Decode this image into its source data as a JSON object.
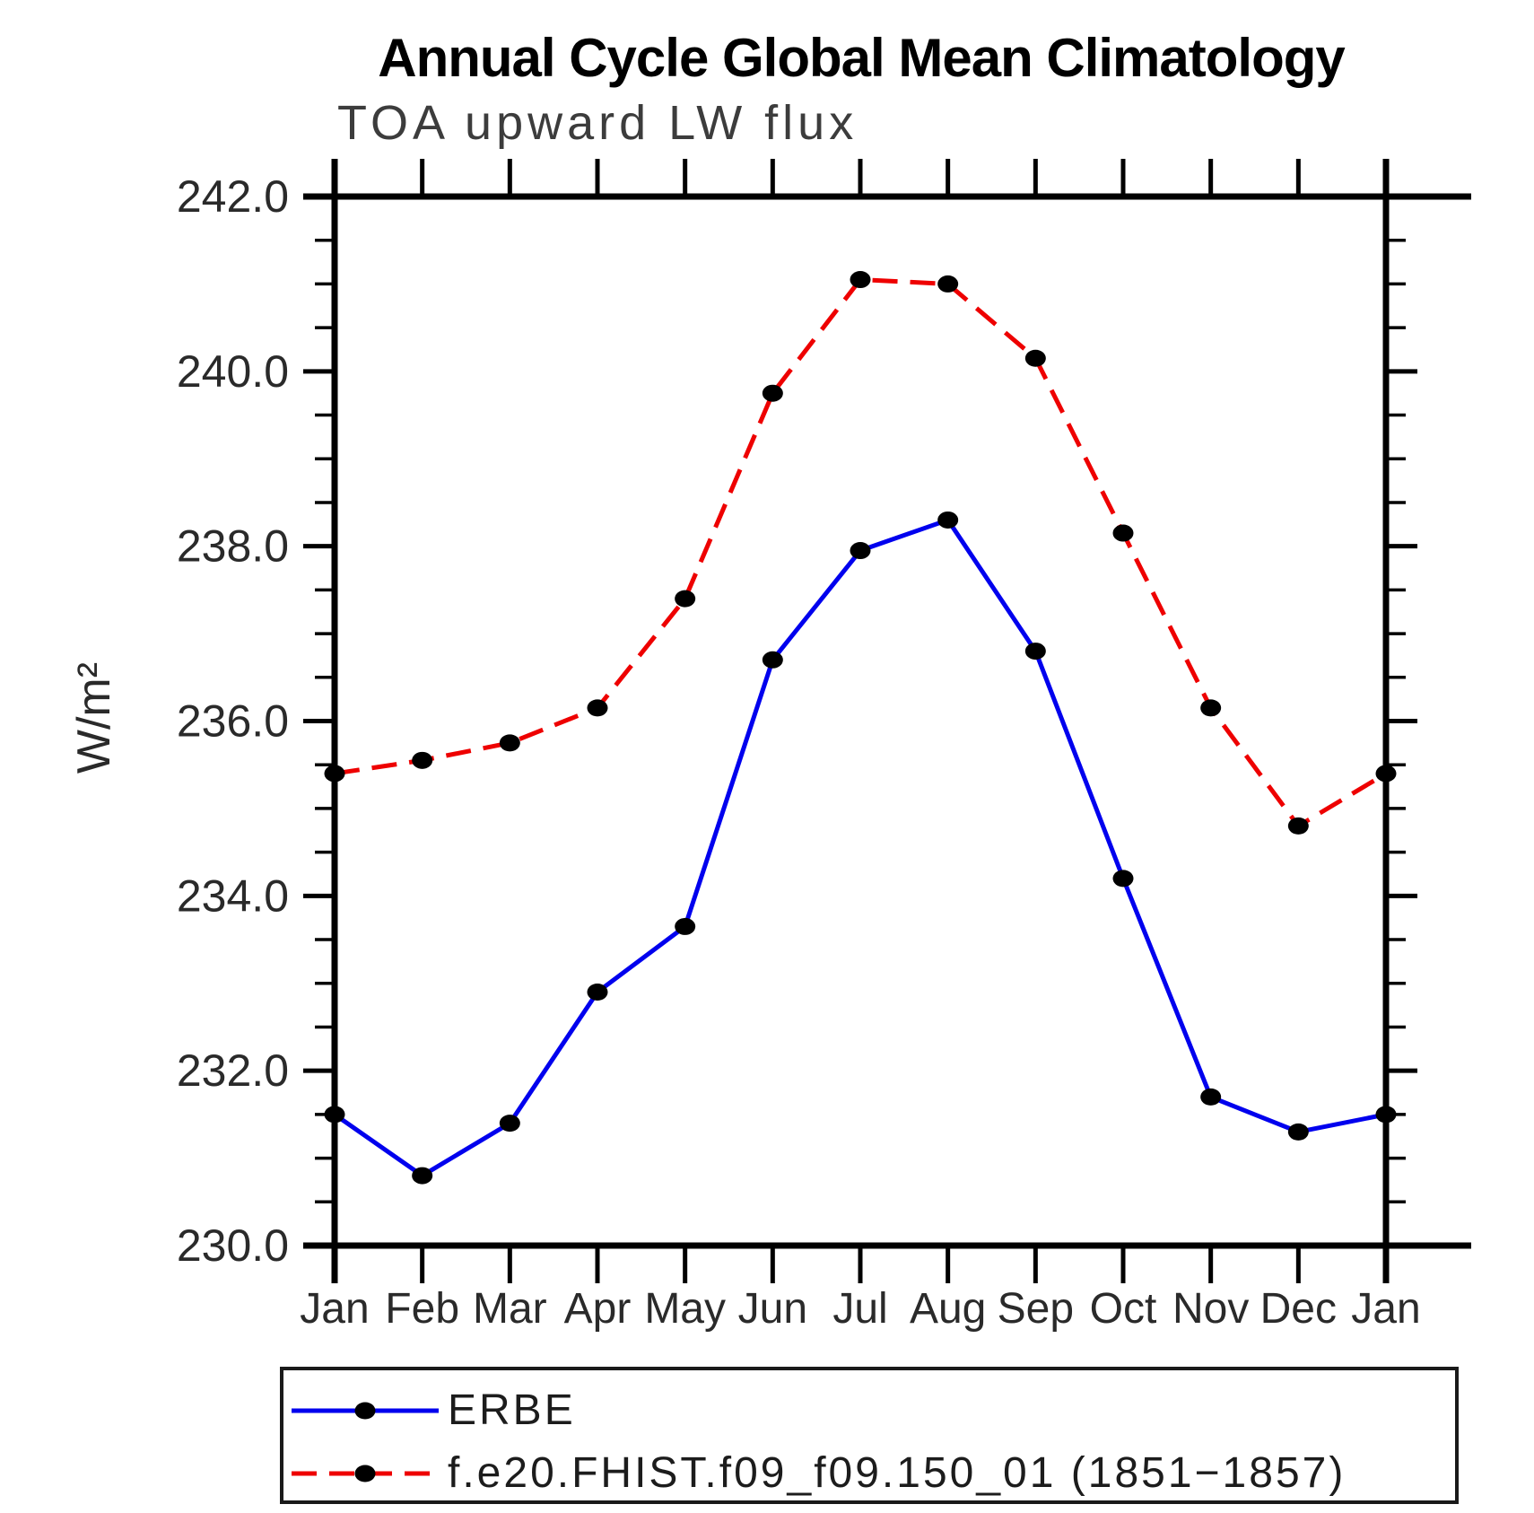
{
  "header": {
    "title": "Annual Cycle Global Mean Climatology",
    "subtitle": "TOA upward LW flux"
  },
  "chart_data": {
    "type": "line",
    "title": "Annual Cycle Global Mean Climatology",
    "subtitle": "TOA upward LW flux",
    "xlabel": "",
    "ylabel": "W/m²",
    "categories": [
      "Jan",
      "Feb",
      "Mar",
      "Apr",
      "May",
      "Jun",
      "Jul",
      "Aug",
      "Sep",
      "Oct",
      "Nov",
      "Dec",
      "Jan"
    ],
    "series": [
      {
        "name": "ERBE",
        "color": "#0000ee",
        "line_style": "solid",
        "marker": "filled-black-ellipse",
        "values": [
          231.5,
          230.8,
          231.4,
          232.9,
          233.65,
          236.7,
          237.95,
          238.3,
          236.8,
          234.2,
          231.7,
          231.3,
          231.5
        ]
      },
      {
        "name": "f.e20.FHIST.f09_f09.150_01 (1851−1857)",
        "color": "#ee0000",
        "line_style": "dashed",
        "marker": "filled-black-ellipse",
        "values": [
          235.4,
          235.55,
          235.75,
          236.15,
          237.4,
          239.75,
          241.05,
          241.0,
          240.15,
          238.15,
          236.15,
          234.8,
          235.4
        ]
      }
    ],
    "ylim": [
      230.0,
      242.0
    ],
    "ytick_step": 2.0,
    "yminor_step": 0.5,
    "ytick_labels": [
      "230.0",
      "232.0",
      "234.0",
      "236.0",
      "238.0",
      "240.0",
      "242.0"
    ],
    "grid": false,
    "legend_position": "bottom-left",
    "marker_color": "#000000"
  }
}
